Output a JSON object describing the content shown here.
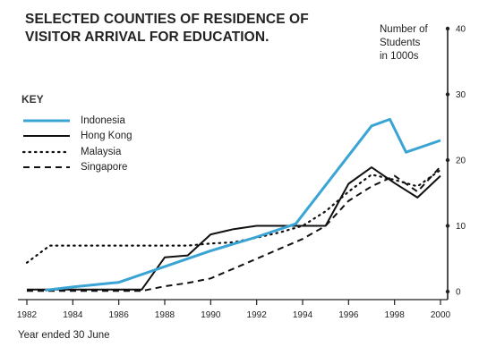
{
  "title_lines": [
    "SELECTED COUNTIES OF RESIDENCE OF",
    "VISITOR ARRIVAL FOR EDUCATION."
  ],
  "ylabel_lines": [
    "Number of",
    "Students",
    "in 1000s"
  ],
  "xlabel_note": "Year ended 30 June",
  "legend_title": "KEY",
  "chart_data": {
    "type": "line",
    "title": "SELECTED COUNTIES OF RESIDENCE OF VISITOR ARRIVAL FOR EDUCATION.",
    "xlabel": "Year ended 30 June",
    "ylabel": "Number of Students in 1000s",
    "xlim": [
      1982,
      2000
    ],
    "ylim": [
      0,
      40
    ],
    "x_ticks": [
      "1982",
      "1984",
      "1986",
      "1988",
      "1990",
      "1992",
      "1994",
      "1996",
      "1998",
      "2000"
    ],
    "y_ticks": [
      "0",
      "10",
      "20",
      "30",
      "40"
    ],
    "y_axis_position": "right",
    "grid": false,
    "legend_position": "left",
    "series": [
      {
        "name": "Indonesia",
        "style": "solid-thick",
        "color": "#3aa4d4",
        "x": [
          1982.8,
          1984,
          1986,
          1988,
          1990,
          1992,
          1993.7,
          1997,
          1997.8,
          1998.5,
          2000
        ],
        "values": [
          0.2,
          0.7,
          1.4,
          3.8,
          6.2,
          8.3,
          10.3,
          25.2,
          26.2,
          21.2,
          23.0
        ]
      },
      {
        "name": "Hong Kong",
        "style": "solid",
        "color": "#111111",
        "x": [
          1982,
          1983,
          1984,
          1985,
          1986,
          1987,
          1988,
          1989,
          1990,
          1991,
          1992,
          1993,
          1994,
          1995,
          1996,
          1997,
          1998,
          1999,
          2000
        ],
        "values": [
          0.3,
          0.3,
          0.3,
          0.3,
          0.3,
          0.3,
          5.2,
          5.5,
          8.7,
          9.5,
          10.0,
          10.0,
          10.0,
          10.0,
          16.4,
          18.9,
          16.5,
          14.3,
          17.6
        ]
      },
      {
        "name": "Malaysia",
        "style": "dotted",
        "color": "#111111",
        "x": [
          1982,
          1983,
          1984,
          1985,
          1986,
          1987,
          1988,
          1989,
          1990,
          1991,
          1992,
          1993,
          1994,
          1995,
          1996,
          1997,
          1998,
          1999,
          2000
        ],
        "values": [
          4.4,
          7.0,
          7.0,
          7.0,
          7.0,
          7.0,
          7.0,
          7.0,
          7.3,
          7.5,
          8.2,
          9.0,
          10.0,
          12.2,
          15.2,
          17.8,
          17.0,
          16.0,
          18.5
        ]
      },
      {
        "name": "Singapore",
        "style": "dashed",
        "color": "#111111",
        "x": [
          1982,
          1983,
          1984,
          1985,
          1986,
          1987,
          1988,
          1989,
          1990,
          1991,
          1992,
          1993,
          1994,
          1995,
          1996,
          1997,
          1998,
          1999,
          2000
        ],
        "values": [
          0.1,
          0.1,
          0.1,
          0.1,
          0.1,
          0.1,
          0.8,
          1.3,
          2.0,
          3.5,
          5.0,
          6.5,
          8.0,
          10.0,
          13.8,
          16.0,
          17.6,
          15.2,
          19.0
        ]
      }
    ]
  }
}
